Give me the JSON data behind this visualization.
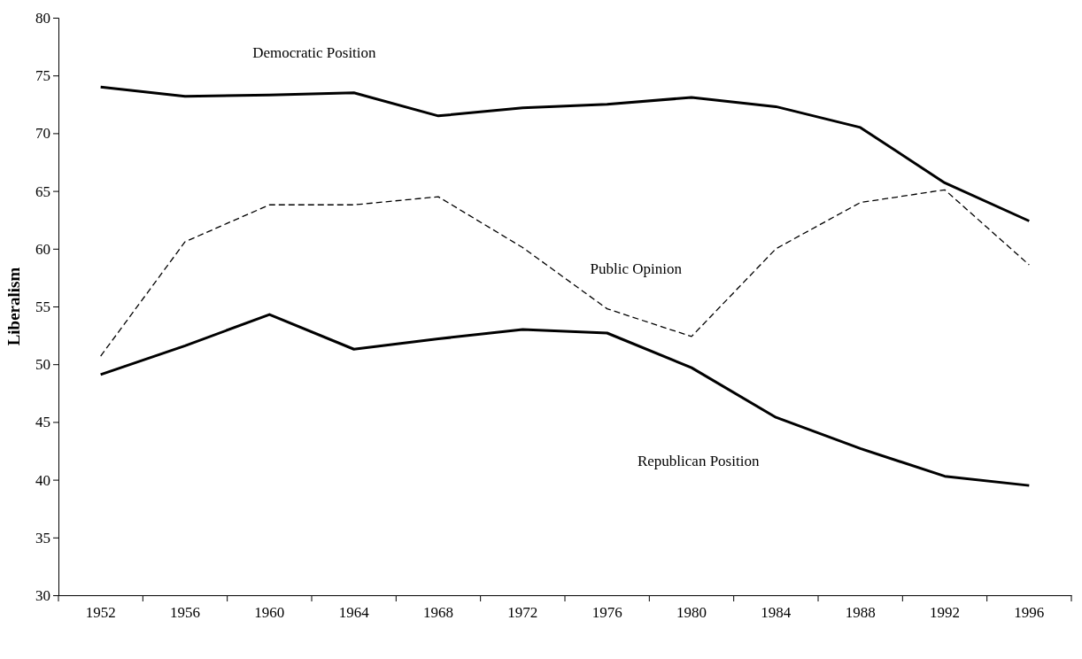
{
  "chart_data": {
    "type": "line",
    "ylabel": "Liberalism",
    "categories": [
      "1952",
      "1956",
      "1960",
      "1964",
      "1968",
      "1972",
      "1976",
      "1980",
      "1984",
      "1988",
      "1992",
      "1996"
    ],
    "ylim": [
      30,
      80
    ],
    "yticks": [
      30,
      35,
      40,
      45,
      50,
      55,
      60,
      65,
      70,
      75,
      80
    ],
    "grid": false,
    "marker": "none",
    "series": [
      {
        "name": "Democratic Position",
        "color": "#000000",
        "line_style": "solid",
        "values": [
          74.0,
          73.2,
          73.3,
          73.5,
          71.5,
          72.2,
          72.5,
          73.1,
          72.3,
          70.5,
          65.7,
          62.4
        ]
      },
      {
        "name": "Public Opinion",
        "color": "#000000",
        "line_style": "dashed",
        "values": [
          50.7,
          60.6,
          63.8,
          63.8,
          64.5,
          60.1,
          54.8,
          52.4,
          60.0,
          64.0,
          65.1,
          58.6
        ]
      },
      {
        "name": "Republican Position",
        "color": "#000000",
        "line_style": "solid",
        "values": [
          49.1,
          51.6,
          54.3,
          51.3,
          52.2,
          53.0,
          52.7,
          49.7,
          45.4,
          42.7,
          40.3,
          39.5
        ]
      }
    ]
  }
}
